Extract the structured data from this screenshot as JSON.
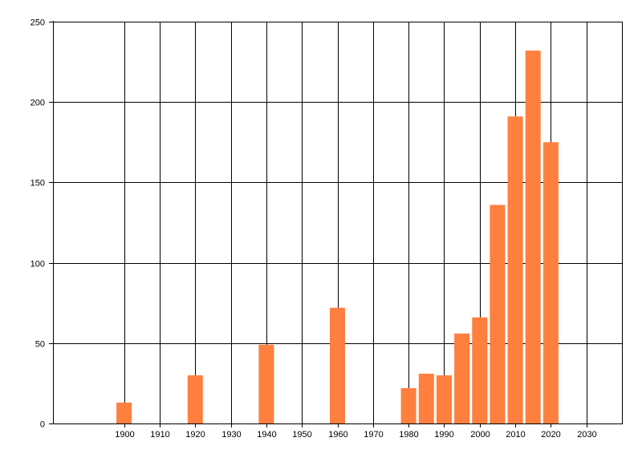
{
  "chart_data": {
    "type": "bar",
    "title": "",
    "xlabel": "",
    "ylabel": "",
    "x": [
      1900,
      1920,
      1940,
      1960,
      1980,
      1985,
      1990,
      1995,
      2000,
      2005,
      2010,
      2015,
      2020
    ],
    "values": [
      13,
      30,
      49,
      72,
      22,
      31,
      30,
      56,
      66,
      136,
      191,
      232,
      175
    ],
    "xlim": [
      1880,
      2040
    ],
    "ylim": [
      0,
      250
    ],
    "x_ticks": [
      1900,
      1910,
      1920,
      1930,
      1940,
      1950,
      1960,
      1970,
      1980,
      1990,
      2000,
      2010,
      2020,
      2030
    ],
    "y_ticks": [
      0,
      50,
      100,
      150,
      200,
      250
    ],
    "grid": true,
    "legend": "none",
    "bar_color": "#ff7f3f",
    "grid_color": "#000000"
  }
}
